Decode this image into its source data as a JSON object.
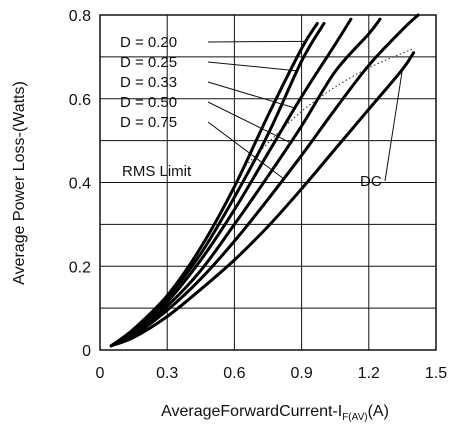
{
  "chart_data": {
    "type": "line",
    "xlabel": "AverageForwardCurrent-I",
    "xlabel_sub": "F(AV)",
    "xlabel_unit": "(A)",
    "ylabel": "Average Power Loss-(Watts)",
    "xlim": [
      0,
      1.5
    ],
    "ylim": [
      0,
      0.8
    ],
    "x_ticks": [
      "0",
      "0.3",
      "0.6",
      "0.9",
      "1.2",
      "1.5"
    ],
    "y_ticks": [
      "0",
      "0.2",
      "0.4",
      "0.6",
      "0.8"
    ],
    "grid": true,
    "series": [
      {
        "name": "D = 0.20",
        "x": [
          0.05,
          0.15,
          0.3,
          0.45,
          0.6,
          0.75,
          0.9,
          0.97
        ],
        "y": [
          0.01,
          0.05,
          0.13,
          0.245,
          0.39,
          0.56,
          0.72,
          0.78
        ]
      },
      {
        "name": "D = 0.25",
        "x": [
          0.05,
          0.15,
          0.3,
          0.45,
          0.6,
          0.75,
          0.9,
          1.0
        ],
        "y": [
          0.01,
          0.048,
          0.125,
          0.23,
          0.365,
          0.515,
          0.69,
          0.78
        ]
      },
      {
        "name": "D = 0.33",
        "x": [
          0.05,
          0.15,
          0.3,
          0.45,
          0.6,
          0.75,
          0.9,
          1.05,
          1.12
        ],
        "y": [
          0.01,
          0.045,
          0.115,
          0.215,
          0.335,
          0.47,
          0.605,
          0.73,
          0.79
        ]
      },
      {
        "name": "D = 0.50",
        "x": [
          0.05,
          0.15,
          0.3,
          0.45,
          0.6,
          0.75,
          0.9,
          1.05,
          1.2,
          1.25
        ],
        "y": [
          0.01,
          0.04,
          0.105,
          0.19,
          0.3,
          0.415,
          0.535,
          0.665,
          0.755,
          0.79
        ]
      },
      {
        "name": "D = 0.75",
        "x": [
          0.05,
          0.15,
          0.3,
          0.45,
          0.6,
          0.75,
          0.9,
          1.05,
          1.2,
          1.35,
          1.42
        ],
        "y": [
          0.01,
          0.035,
          0.095,
          0.17,
          0.26,
          0.36,
          0.465,
          0.575,
          0.68,
          0.765,
          0.8
        ]
      },
      {
        "name": "DC",
        "x": [
          0.05,
          0.15,
          0.3,
          0.45,
          0.6,
          0.75,
          0.9,
          1.05,
          1.2,
          1.35,
          1.4
        ],
        "y": [
          0.01,
          0.03,
          0.08,
          0.145,
          0.215,
          0.295,
          0.385,
          0.48,
          0.575,
          0.67,
          0.71
        ]
      }
    ],
    "rms_limit": {
      "label": "RMS Limit",
      "x": [
        0.65,
        0.9,
        1.15,
        1.4
      ],
      "y": [
        0.44,
        0.57,
        0.66,
        0.72
      ]
    },
    "annotations": [
      "D = 0.20",
      "D = 0.25",
      "D = 0.33",
      "D = 0.50",
      "D = 0.75",
      "RMS Limit",
      "DC"
    ]
  },
  "labels": {
    "duty": [
      "D = 0.20",
      "D = 0.25",
      "D = 0.33",
      "D = 0.50",
      "D = 0.75"
    ],
    "rms": "RMS Limit",
    "dc": "DC"
  }
}
